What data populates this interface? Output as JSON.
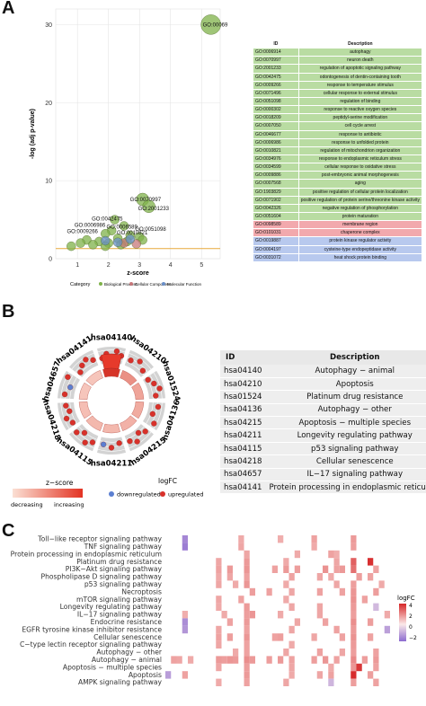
{
  "panels": {
    "a": "A",
    "b": "B",
    "c": "C"
  },
  "go": {
    "xlabel": "z-score",
    "ylabel": "-log (adj p-value)",
    "xticks": [
      "1",
      "2",
      "3",
      "4",
      "5"
    ],
    "yticks": [
      "0",
      "10",
      "20",
      "30"
    ],
    "labels": {
      "top": "GO:00069",
      "mid1": "GO:0070997",
      "mid2": "GO:2001233",
      "l1": "GO:0042475",
      "l2": "GO:0006986",
      "l3": "GO:0006589",
      "l4": "GO:0009266",
      "l5": "GO:0010821",
      "l6": "GO:0051098"
    },
    "legend": {
      "title": "Category",
      "items": [
        "Biological Process",
        "Cellular Component",
        "Molecular Function"
      ]
    },
    "table_header": {
      "id": "ID",
      "desc": "Description"
    },
    "table": [
      {
        "id": "GO:0006914",
        "desc": "autophagy",
        "cat": "bp"
      },
      {
        "id": "GO:0070997",
        "desc": "neuron death",
        "cat": "bp"
      },
      {
        "id": "GO:2001233",
        "desc": "regulation of apoptotic signaling pathway",
        "cat": "bp"
      },
      {
        "id": "GO:0042475",
        "desc": "odontogenesis of dentin-containing tooth",
        "cat": "bp"
      },
      {
        "id": "GO:0009266",
        "desc": "response to temperature stimulus",
        "cat": "bp"
      },
      {
        "id": "GO:0071496",
        "desc": "cellular response to external stimulus",
        "cat": "bp"
      },
      {
        "id": "GO:0051098",
        "desc": "regulation of binding",
        "cat": "bp"
      },
      {
        "id": "GO:0000302",
        "desc": "response to reactive oxygen species",
        "cat": "bp"
      },
      {
        "id": "GO:0018209",
        "desc": "peptidyl-serine modification",
        "cat": "bp"
      },
      {
        "id": "GO:0007050",
        "desc": "cell cycle arrest",
        "cat": "bp"
      },
      {
        "id": "GO:0046677",
        "desc": "response to antibiotic",
        "cat": "bp"
      },
      {
        "id": "GO:0006986",
        "desc": "response to unfolded protein",
        "cat": "bp"
      },
      {
        "id": "GO:0010821",
        "desc": "regulation of mitochondrion organization",
        "cat": "bp"
      },
      {
        "id": "GO:0034976",
        "desc": "response to endoplasmic reticulum stress",
        "cat": "bp"
      },
      {
        "id": "GO:0034599",
        "desc": "cellular response to oxidative stress",
        "cat": "bp"
      },
      {
        "id": "GO:0009886",
        "desc": "post-embryonic animal morphogenesis",
        "cat": "bp"
      },
      {
        "id": "GO:0007568",
        "desc": "aging",
        "cat": "bp"
      },
      {
        "id": "GO:1903829",
        "desc": "positive regulation of cellular protein localization",
        "cat": "bp"
      },
      {
        "id": "GO:0071902",
        "desc": "positive regulation of protein serine/threonine kinase activity",
        "cat": "bp"
      },
      {
        "id": "GO:0042326",
        "desc": "negative regulation of phosphorylation",
        "cat": "bp"
      },
      {
        "id": "GO:0051604",
        "desc": "protein maturation",
        "cat": "bp"
      },
      {
        "id": "GO:0098589",
        "desc": "membrane region",
        "cat": "cc"
      },
      {
        "id": "GO:0101031",
        "desc": "chaperone complex",
        "cat": "cc"
      },
      {
        "id": "GO:0019887",
        "desc": "protein kinase regulator activity",
        "cat": "mf"
      },
      {
        "id": "GO:0004197",
        "desc": "cysteine-type endopeptidase activity",
        "cat": "mf"
      },
      {
        "id": "GO:0031072",
        "desc": "heat shock protein binding",
        "cat": "mf"
      }
    ]
  },
  "kegg": {
    "table_header": {
      "id": "ID",
      "desc": "Description"
    },
    "table": [
      {
        "id": "hsa04140",
        "desc": "Autophagy − animal"
      },
      {
        "id": "hsa04210",
        "desc": "Apoptosis"
      },
      {
        "id": "hsa01524",
        "desc": "Platinum drug resistance"
      },
      {
        "id": "hsa04136",
        "desc": "Autophagy − other"
      },
      {
        "id": "hsa04215",
        "desc": "Apoptosis − multiple species"
      },
      {
        "id": "hsa04211",
        "desc": "Longevity regulating pathway"
      },
      {
        "id": "hsa04115",
        "desc": "p53 signaling pathway"
      },
      {
        "id": "hsa04218",
        "desc": "Cellular senescence"
      },
      {
        "id": "hsa04657",
        "desc": "IL−17 signaling pathway"
      },
      {
        "id": "hsa04141",
        "desc": "Protein processing in endoplasmic reticulum"
      }
    ],
    "legend": {
      "zscore_title": "z−score",
      "decreasing": "decreasing",
      "increasing": "increasing",
      "logfc_title": "logFC",
      "down": "downregulated",
      "up": "upregulated"
    }
  },
  "heatmap": {
    "rows": [
      "Toll−like receptor signaling pathway",
      "TNF signaling pathway",
      "Protein processing in endoplasmic reticulum",
      "Platinum drug resistance",
      "PI3K−Akt signaling pathway",
      "Phospholipase D signaling pathway",
      "p53 signaling pathway",
      "Necroptosis",
      "mTOR signaling pathway",
      "Longevity regulating pathway",
      "IL−17 signaling pathway",
      "Endocrine resistance",
      "EGFR tyrosine kinase inhibitor resistance",
      "Cellular senescence",
      "C−type lectin receptor signaling pathway",
      "Autophagy − other",
      "Autophagy − animal",
      "Apoptosis − multiple species",
      "Apoptosis",
      "AMPK signaling pathway"
    ],
    "legend": {
      "title": "logFC",
      "ticks": [
        "4",
        "2",
        "0",
        "−2"
      ]
    },
    "colors": {
      "high": "#d62728",
      "low": "#8c6bd0"
    }
  },
  "chart_data": [
    {
      "type": "scatter",
      "xlabel": "z-score",
      "ylabel": "-log (adj p-value)",
      "xlim": [
        0.3,
        5.6
      ],
      "ylim": [
        0,
        32
      ],
      "threshold_y": 1.3,
      "legend_position": "bottom",
      "series": [
        {
          "name": "Biological Process",
          "points": [
            {
              "x": 5.3,
              "y": 30.0,
              "label": "GO:00069"
            },
            {
              "x": 3.1,
              "y": 7.6,
              "label": "GO:0070997"
            },
            {
              "x": 3.3,
              "y": 6.7,
              "label": "GO:2001233"
            },
            {
              "x": 2.2,
              "y": 5.0
            },
            {
              "x": 2.5,
              "y": 4.2
            },
            {
              "x": 2.1,
              "y": 3.6
            },
            {
              "x": 1.9,
              "y": 3.2
            },
            {
              "x": 2.7,
              "y": 3.0
            },
            {
              "x": 1.3,
              "y": 2.4
            },
            {
              "x": 1.7,
              "y": 2.2
            },
            {
              "x": 2.3,
              "y": 2.6
            },
            {
              "x": 3.0,
              "y": 2.8
            },
            {
              "x": 0.8,
              "y": 1.6
            },
            {
              "x": 1.1,
              "y": 2.0
            },
            {
              "x": 1.5,
              "y": 1.8
            },
            {
              "x": 2.0,
              "y": 2.0
            },
            {
              "x": 2.6,
              "y": 2.2
            },
            {
              "x": 3.1,
              "y": 2.4
            },
            {
              "x": 1.9,
              "y": 1.6
            },
            {
              "x": 2.4,
              "y": 1.8
            }
          ]
        },
        {
          "name": "Cellular Component",
          "points": [
            {
              "x": 2.5,
              "y": 2.0
            },
            {
              "x": 2.9,
              "y": 1.9
            }
          ]
        },
        {
          "name": "Molecular Function",
          "points": [
            {
              "x": 1.9,
              "y": 2.3
            },
            {
              "x": 2.3,
              "y": 2.1
            },
            {
              "x": 2.7,
              "y": 2.5
            }
          ]
        }
      ]
    },
    {
      "type": "circular",
      "categories": [
        "hsa04140",
        "hsa04210",
        "hsa01524",
        "hsa04136",
        "hsa04215",
        "hsa04211",
        "hsa04115",
        "hsa04218",
        "hsa04657",
        "hsa04141"
      ],
      "values": [
        4.0,
        2.6,
        2.3,
        2.2,
        2.1,
        2.0,
        2.0,
        1.9,
        1.8,
        1.8
      ]
    },
    {
      "type": "heatmap",
      "rows": [
        "Toll−like receptor signaling pathway",
        "TNF signaling pathway",
        "Protein processing in endoplasmic reticulum",
        "Platinum drug resistance",
        "PI3K−Akt signaling pathway",
        "Phospholipase D signaling pathway",
        "p53 signaling pathway",
        "Necroptosis",
        "mTOR signaling pathway",
        "Longevity regulating pathway",
        "IL−17 signaling pathway",
        "Endocrine resistance",
        "EGFR tyrosine kinase inhibitor resistance",
        "Cellular senescence",
        "C−type lectin receptor signaling pathway",
        "Autophagy − other",
        "Autophagy − animal",
        "Apoptosis − multiple species",
        "Apoptosis",
        "AMPK signaling pathway"
      ],
      "cols": 40,
      "color_range": [
        -3,
        4
      ],
      "cells": [
        [
          0,
          3,
          -2.2
        ],
        [
          1,
          3,
          -2.5
        ],
        [
          0,
          13,
          0.8
        ],
        [
          1,
          13,
          0.9
        ],
        [
          0,
          20,
          0.7
        ],
        [
          0,
          26,
          1.0
        ],
        [
          1,
          26,
          0.8
        ],
        [
          0,
          33,
          1.2
        ],
        [
          1,
          33,
          1.1
        ],
        [
          2,
          14,
          0.9
        ],
        [
          2,
          23,
          0.8
        ],
        [
          2,
          29,
          1.0
        ],
        [
          2,
          30,
          0.7
        ],
        [
          3,
          9,
          0.9
        ],
        [
          3,
          14,
          1.2
        ],
        [
          3,
          21,
          0.8
        ],
        [
          3,
          30,
          0.9
        ],
        [
          3,
          33,
          2.6
        ],
        [
          3,
          36,
          3.8
        ],
        [
          4,
          9,
          1.0
        ],
        [
          4,
          11,
          1.2
        ],
        [
          4,
          14,
          1.3
        ],
        [
          4,
          19,
          1.0
        ],
        [
          4,
          21,
          1.2
        ],
        [
          4,
          23,
          1.1
        ],
        [
          4,
          28,
          1.4
        ],
        [
          4,
          30,
          1.0
        ],
        [
          4,
          31,
          1.2
        ],
        [
          4,
          33,
          2.2
        ],
        [
          4,
          37,
          1.0
        ],
        [
          5,
          9,
          0.8
        ],
        [
          5,
          11,
          0.9
        ],
        [
          5,
          14,
          1.0
        ],
        [
          5,
          22,
          1.0
        ],
        [
          5,
          27,
          0.9
        ],
        [
          5,
          29,
          0.8
        ],
        [
          5,
          34,
          1.1
        ],
        [
          5,
          36,
          1.0
        ],
        [
          6,
          9,
          0.9
        ],
        [
          6,
          12,
          0.8
        ],
        [
          6,
          14,
          1.3
        ],
        [
          6,
          21,
          0.8
        ],
        [
          6,
          30,
          0.9
        ],
        [
          6,
          33,
          1.1
        ],
        [
          6,
          38,
          0.8
        ],
        [
          7,
          15,
          1.1
        ],
        [
          7,
          18,
          1.0
        ],
        [
          7,
          22,
          0.9
        ],
        [
          7,
          27,
          1.0
        ],
        [
          7,
          31,
          1.0
        ],
        [
          7,
          33,
          1.3
        ],
        [
          7,
          37,
          1.1
        ],
        [
          8,
          9,
          0.9
        ],
        [
          8,
          13,
          1.0
        ],
        [
          8,
          21,
          0.8
        ],
        [
          8,
          33,
          1.4
        ],
        [
          8,
          35,
          1.0
        ],
        [
          9,
          9,
          0.8
        ],
        [
          9,
          14,
          1.2
        ],
        [
          9,
          22,
          0.9
        ],
        [
          9,
          27,
          0.9
        ],
        [
          9,
          33,
          1.2
        ],
        [
          9,
          37,
          -0.8
        ],
        [
          10,
          3,
          0.7
        ],
        [
          10,
          10,
          0.8
        ],
        [
          10,
          14,
          1.1
        ],
        [
          10,
          15,
          1.3
        ],
        [
          10,
          20,
          0.8
        ],
        [
          10,
          27,
          0.9
        ],
        [
          10,
          33,
          1.1
        ],
        [
          10,
          39,
          0.8
        ],
        [
          11,
          3,
          -2.0
        ],
        [
          11,
          11,
          1.0
        ],
        [
          11,
          14,
          1.2
        ],
        [
          11,
          23,
          0.9
        ],
        [
          11,
          28,
          1.0
        ],
        [
          11,
          33,
          1.5
        ],
        [
          11,
          36,
          1.1
        ],
        [
          12,
          3,
          -1.8
        ],
        [
          12,
          9,
          0.9
        ],
        [
          12,
          14,
          1.0
        ],
        [
          12,
          22,
          0.9
        ],
        [
          12,
          30,
          1.0
        ],
        [
          12,
          33,
          1.2
        ],
        [
          12,
          39,
          -1.5
        ],
        [
          13,
          9,
          1.0
        ],
        [
          13,
          11,
          1.1
        ],
        [
          13,
          14,
          1.3
        ],
        [
          13,
          19,
          1.0
        ],
        [
          13,
          20,
          1.1
        ],
        [
          13,
          26,
          0.9
        ],
        [
          13,
          31,
          1.0
        ],
        [
          13,
          33,
          1.4
        ],
        [
          13,
          36,
          1.0
        ],
        [
          14,
          9,
          0.9
        ],
        [
          14,
          14,
          1.0
        ],
        [
          14,
          22,
          0.8
        ],
        [
          14,
          33,
          1.2
        ],
        [
          15,
          12,
          0.8
        ],
        [
          15,
          14,
          1.0
        ],
        [
          15,
          21,
          0.9
        ],
        [
          15,
          27,
          1.0
        ],
        [
          15,
          31,
          0.9
        ],
        [
          15,
          33,
          1.1
        ],
        [
          15,
          37,
          1.0
        ],
        [
          16,
          1,
          1.0
        ],
        [
          16,
          2,
          0.9
        ],
        [
          16,
          4,
          0.8
        ],
        [
          16,
          9,
          1.2
        ],
        [
          16,
          10,
          1.1
        ],
        [
          16,
          11,
          1.3
        ],
        [
          16,
          12,
          1.2
        ],
        [
          16,
          14,
          1.5
        ],
        [
          16,
          15,
          1.2
        ],
        [
          16,
          18,
          1.1
        ],
        [
          16,
          20,
          1.2
        ],
        [
          16,
          22,
          1.0
        ],
        [
          16,
          26,
          1.1
        ],
        [
          16,
          28,
          1.3
        ],
        [
          16,
          30,
          1.0
        ],
        [
          16,
          33,
          1.6
        ],
        [
          16,
          35,
          1.1
        ],
        [
          16,
          37,
          1.2
        ],
        [
          17,
          9,
          0.9
        ],
        [
          17,
          14,
          1.1
        ],
        [
          17,
          22,
          0.9
        ],
        [
          17,
          29,
          0.8
        ],
        [
          17,
          33,
          1.3
        ],
        [
          17,
          34,
          3.6
        ],
        [
          17,
          37,
          1.0
        ],
        [
          18,
          0,
          -1.6
        ],
        [
          18,
          3,
          1.0
        ],
        [
          18,
          14,
          1.2
        ],
        [
          18,
          22,
          0.8
        ],
        [
          18,
          27,
          0.9
        ],
        [
          18,
          29,
          1.0
        ],
        [
          18,
          33,
          3.9
        ],
        [
          18,
          36,
          1.1
        ],
        [
          19,
          9,
          0.8
        ],
        [
          19,
          14,
          1.0
        ],
        [
          19,
          21,
          0.9
        ],
        [
          19,
          29,
          -0.9
        ],
        [
          19,
          33,
          1.1
        ],
        [
          19,
          37,
          1.0
        ]
      ]
    }
  ]
}
